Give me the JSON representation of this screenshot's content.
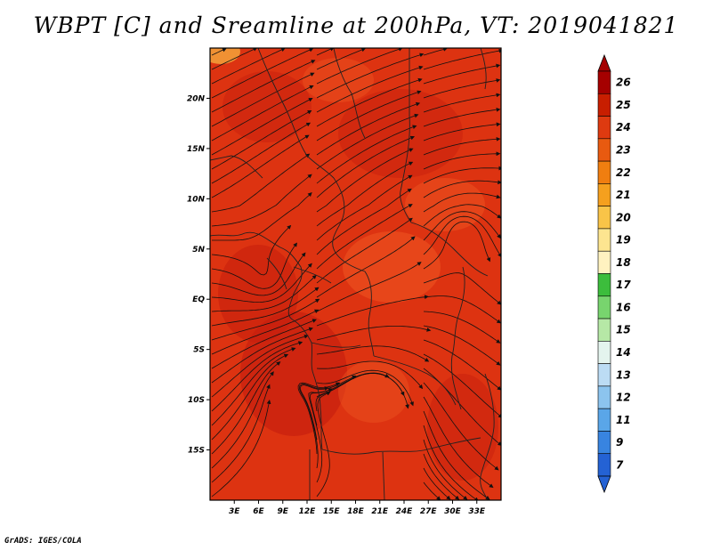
{
  "title": "WBPT [C] and Sreamline at 200hPa, VT: 2019041821",
  "credit": "GrADS: IGES/COLA",
  "map": {
    "lon_range": [
      0,
      36
    ],
    "lat_range": [
      -20,
      25
    ],
    "x_ticks": [
      "3E",
      "6E",
      "9E",
      "12E",
      "15E",
      "18E",
      "21E",
      "24E",
      "27E",
      "30E",
      "33E"
    ],
    "y_ticks": [
      "20N",
      "15N",
      "10N",
      "5N",
      "EQ",
      "5S",
      "10S",
      "15S"
    ],
    "field_color": "#dd3311",
    "field_dark": "#c8200e",
    "field_light": "#ee5522",
    "corner_color": "#f3a23a"
  },
  "colorbar": {
    "labels": [
      "26",
      "25",
      "24",
      "23",
      "22",
      "21",
      "20",
      "19",
      "18",
      "17",
      "16",
      "15",
      "14",
      "13",
      "12",
      "11",
      "9",
      "7"
    ],
    "colors": [
      "#a50000",
      "#c81e00",
      "#de3a10",
      "#e85a10",
      "#f07e10",
      "#f5a01e",
      "#f9c448",
      "#fde590",
      "#fff2c0",
      "#3cbd3c",
      "#78d46e",
      "#b6e8a6",
      "#e4f4ee",
      "#bcdcf4",
      "#8cc4ee",
      "#5aa6e8",
      "#3884e0",
      "#2462d4"
    ]
  }
}
